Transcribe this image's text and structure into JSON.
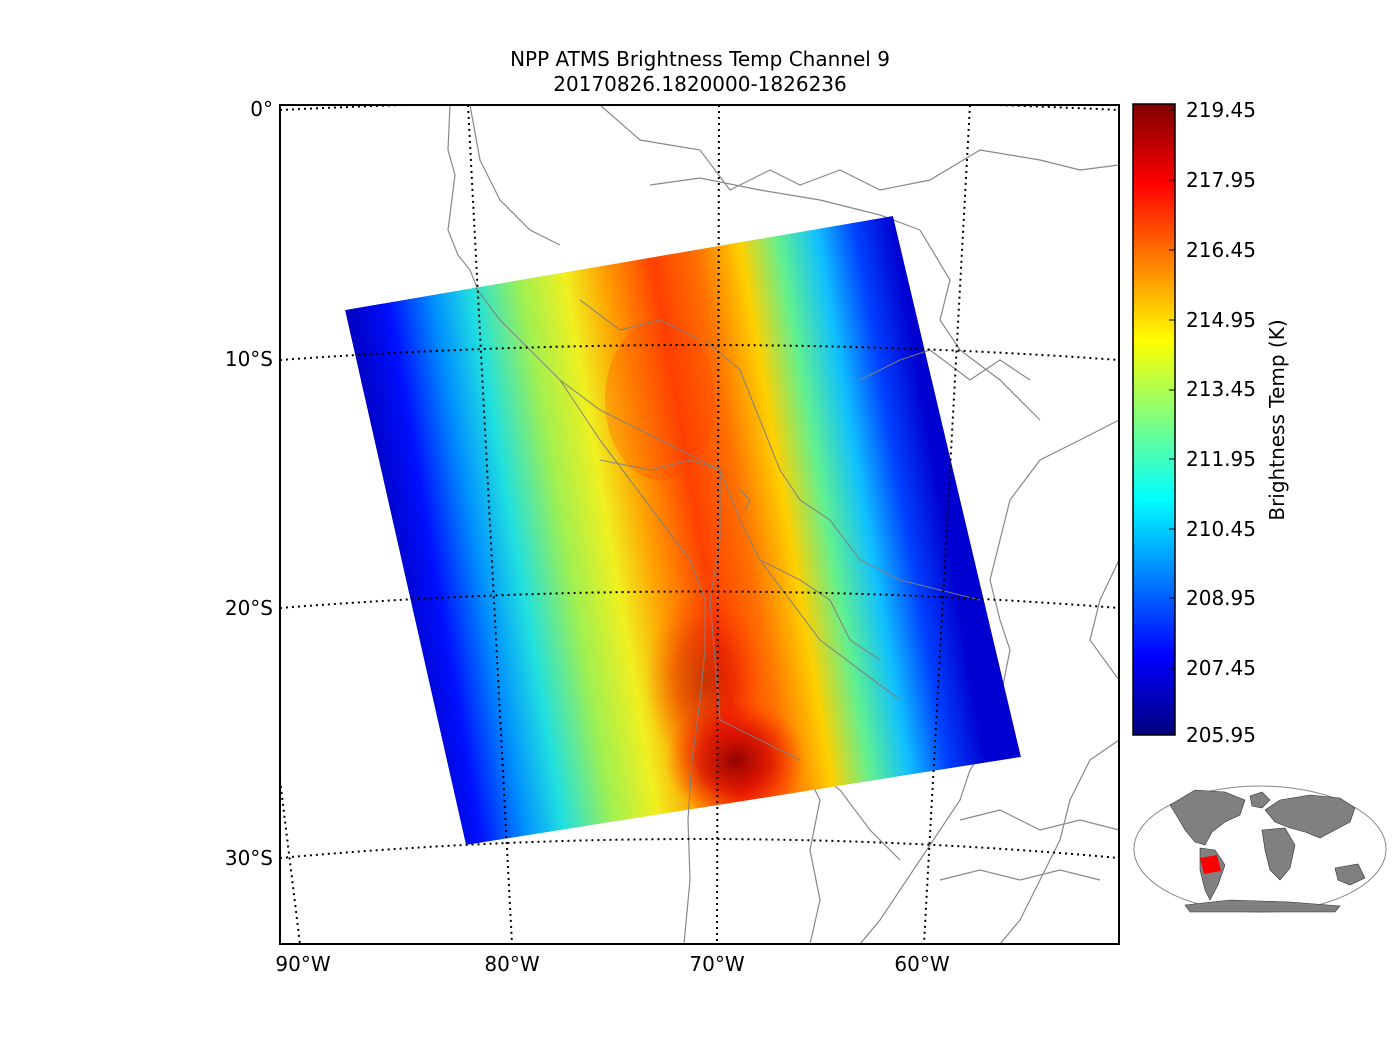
{
  "title": {
    "line1": "NPP ATMS Brightness Temp Channel 9",
    "line2": "20170826.1820000-1826236"
  },
  "map": {
    "lat_labels": [
      "0°",
      "10°S",
      "20°S",
      "30°S"
    ],
    "lon_labels": [
      "90°W",
      "80°W",
      "70°W",
      "60°W"
    ],
    "coastline_color": "#888888",
    "gridline_style": "dotted"
  },
  "colorbar": {
    "label": "Brightness Temp (K)",
    "ticks": [
      "219.45",
      "217.95",
      "216.45",
      "214.95",
      "213.45",
      "211.95",
      "210.45",
      "208.95",
      "207.45",
      "205.95"
    ],
    "min": 205.95,
    "max": 219.45,
    "colormap": "jet"
  },
  "inset": {
    "description_icon": "world-locator-map-icon",
    "highlight_color": "#ff0000",
    "land_color": "#808080"
  }
}
